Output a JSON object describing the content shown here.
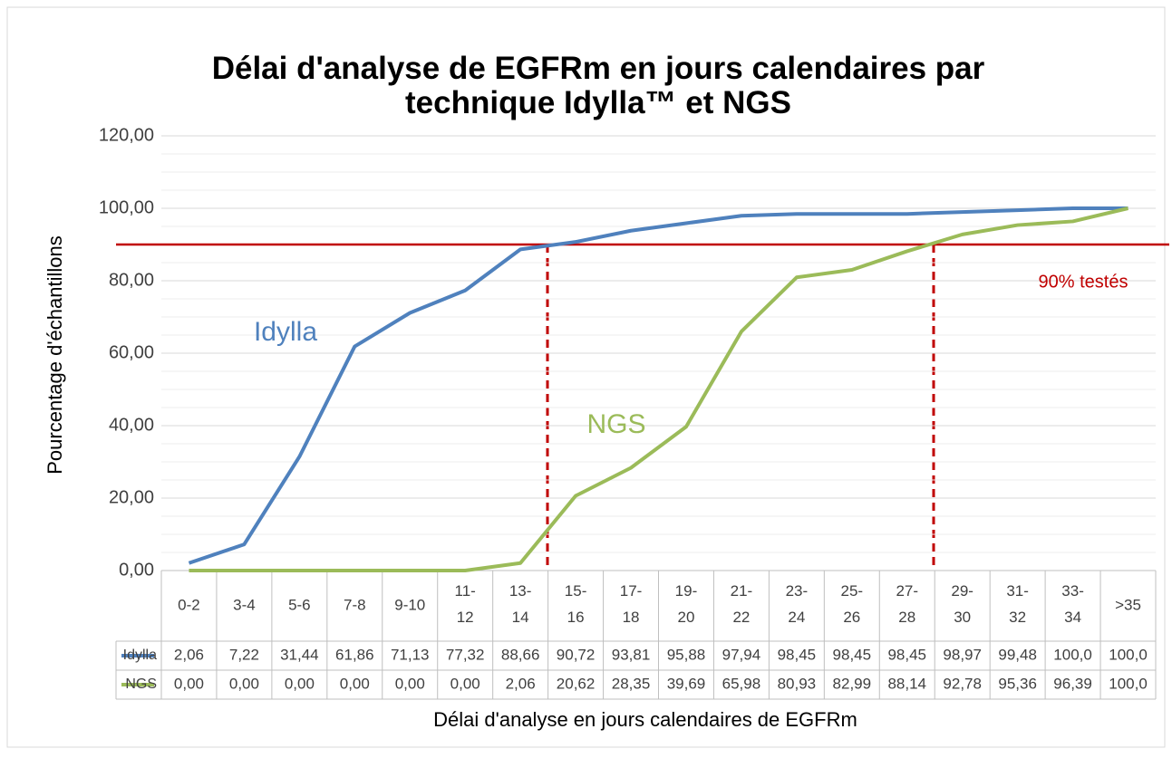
{
  "chart_data": {
    "type": "line",
    "title": "Délai d'analyse de EGFRm en jours calendaires par technique Idylla™  et NGS",
    "x_label": "Délai d'analyse en jours calendaires de EGFRm",
    "y_label": "Pourcentage d'échantillons",
    "categories": [
      "0-2",
      "3-4",
      "5-6",
      "7-8",
      "9-10",
      "11-12",
      "13-14",
      "15-16",
      "17-18",
      "19-20",
      "21-22",
      "23-24",
      "25-26",
      "27-28",
      "29-30",
      "31-32",
      "33-34",
      ">35"
    ],
    "series": [
      {
        "name": "Idylla",
        "color": "#4f81bd",
        "values": [
          2.06,
          7.22,
          31.44,
          61.86,
          71.13,
          77.32,
          88.66,
          90.72,
          93.81,
          95.88,
          97.94,
          98.45,
          98.45,
          98.45,
          98.97,
          99.48,
          100,
          100
        ],
        "value_labels": [
          "2,06",
          "7,22",
          "31,44",
          "61,86",
          "71,13",
          "77,32",
          "88,66",
          "90,72",
          "93,81",
          "95,88",
          "97,94",
          "98,45",
          "98,45",
          "98,45",
          "98,97",
          "99,48",
          "100,0",
          "100,0"
        ]
      },
      {
        "name": "NGS",
        "color": "#9bbb59",
        "values": [
          0,
          0,
          0,
          0,
          0,
          0,
          2.06,
          20.62,
          28.35,
          39.69,
          65.98,
          80.93,
          82.99,
          88.14,
          92.78,
          95.36,
          96.39,
          100
        ],
        "value_labels": [
          "0,00",
          "0,00",
          "0,00",
          "0,00",
          "0,00",
          "0,00",
          "2,06",
          "20,62",
          "28,35",
          "39,69",
          "65,98",
          "80,93",
          "82,99",
          "88,14",
          "92,78",
          "95,36",
          "96,39",
          "100,0"
        ]
      }
    ],
    "annotations": [
      {
        "text": "Idylla",
        "series": 0
      },
      {
        "text": "NGS",
        "series": 1
      }
    ],
    "threshold": {
      "value": 90,
      "label": "90% testés",
      "color": "#c00000"
    },
    "ylim": [
      0,
      120
    ],
    "yticks": [
      {
        "value": 0,
        "label": "0,00"
      },
      {
        "value": 20,
        "label": "20,00"
      },
      {
        "value": 40,
        "label": "40,00"
      },
      {
        "value": 60,
        "label": "60,00"
      },
      {
        "value": 80,
        "label": "80,00"
      },
      {
        "value": 100,
        "label": "100,00"
      },
      {
        "value": 120,
        "label": "120,00"
      }
    ],
    "grid": true,
    "minor_grid_divisions": 4
  }
}
